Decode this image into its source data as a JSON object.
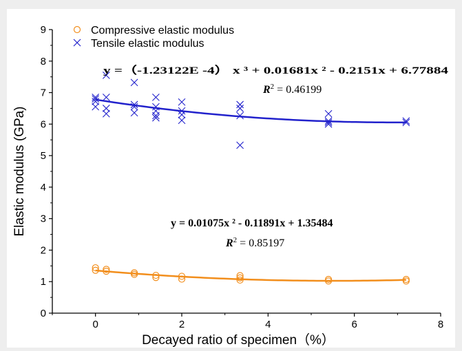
{
  "chart_data": {
    "type": "scatter",
    "xlabel": "Decayed ratio of specimen（%）",
    "ylabel": "Elastic modulus (GPa)",
    "xlim": [
      -1,
      8
    ],
    "ylim": [
      0,
      9
    ],
    "xticks": [
      "0",
      "2",
      "4",
      "6",
      "8"
    ],
    "yticks": [
      "0",
      "1",
      "2",
      "3",
      "4",
      "5",
      "6",
      "7",
      "8",
      "9"
    ],
    "legend_position": "top-left",
    "series": [
      {
        "name": "Compressive elastic modulus",
        "marker": "circle",
        "color": "#f28e1c",
        "points": [
          [
            0,
            1.44
          ],
          [
            0,
            1.36
          ],
          [
            0.25,
            1.39
          ],
          [
            0.25,
            1.33
          ],
          [
            0.9,
            1.28
          ],
          [
            0.9,
            1.23
          ],
          [
            1.4,
            1.2
          ],
          [
            1.4,
            1.13
          ],
          [
            2.0,
            1.17
          ],
          [
            2.0,
            1.08
          ],
          [
            3.35,
            1.19
          ],
          [
            3.35,
            1.12
          ],
          [
            3.35,
            1.05
          ],
          [
            5.4,
            1.07
          ],
          [
            5.4,
            1.02
          ],
          [
            7.2,
            1.07
          ],
          [
            7.2,
            1.02
          ]
        ],
        "fit": {
          "coefficients": [
            1.35484,
            -0.11891,
            0.01075,
            0
          ],
          "x_range": [
            0,
            7.2
          ]
        },
        "equation": {
          "text": "y = 0.01075x ² - 0.11891x  + 1.35484",
          "r2_label": "R",
          "r2_sup": "2",
          "r2_value": " = 0.85197"
        }
      },
      {
        "name": "Tensile elastic modulus",
        "marker": "x",
        "color": "#2222cc",
        "points": [
          [
            0,
            6.85
          ],
          [
            0,
            6.8
          ],
          [
            0,
            6.72
          ],
          [
            0,
            6.55
          ],
          [
            0.25,
            7.55
          ],
          [
            0.25,
            6.85
          ],
          [
            0.25,
            6.5
          ],
          [
            0.25,
            6.33
          ],
          [
            0.9,
            7.32
          ],
          [
            0.9,
            6.62
          ],
          [
            0.9,
            6.55
          ],
          [
            0.9,
            6.36
          ],
          [
            1.4,
            6.85
          ],
          [
            1.4,
            6.55
          ],
          [
            1.4,
            6.42
          ],
          [
            1.4,
            6.27
          ],
          [
            1.4,
            6.2
          ],
          [
            2.0,
            6.7
          ],
          [
            2.0,
            6.42
          ],
          [
            2.0,
            6.3
          ],
          [
            2.0,
            6.12
          ],
          [
            3.35,
            6.62
          ],
          [
            3.35,
            6.5
          ],
          [
            3.35,
            6.27
          ],
          [
            3.35,
            5.33
          ],
          [
            5.4,
            6.33
          ],
          [
            5.4,
            6.1
          ],
          [
            5.4,
            6.05
          ],
          [
            5.4,
            6.0
          ],
          [
            7.2,
            6.1
          ],
          [
            7.2,
            6.05
          ]
        ],
        "fit": {
          "coefficients": [
            6.77884,
            -0.2151,
            0.01681,
            -0.000123122
          ],
          "x_range": [
            0,
            7.2
          ]
        },
        "equation": {
          "text": "y =（-1.23122E -4） x ³ + 0.01681x ² - 0.2151x  + 6.77884",
          "r2_label": "R",
          "r2_sup": "2",
          "r2_value": " = 0.46199"
        }
      }
    ]
  }
}
